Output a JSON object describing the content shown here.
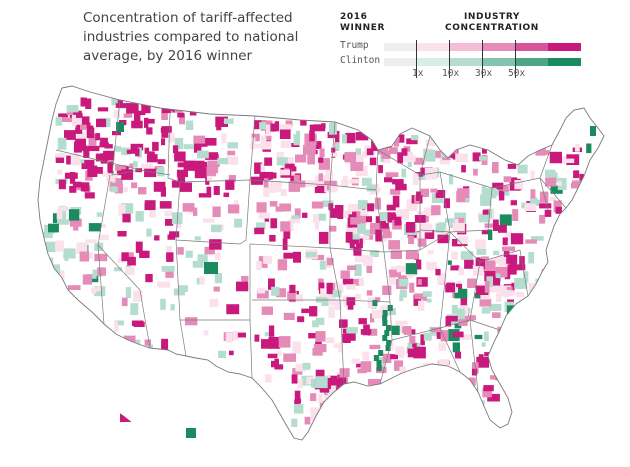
{
  "title": "Concentration of tariff-affected industries compared to national average, by 2016 winner",
  "legend": {
    "winner_heading": "2016 WINNER",
    "industry_heading": "INDUSTRY CONCENTRATION",
    "rows": [
      {
        "label": "Trump",
        "colors": [
          "#eeeeee",
          "#fbe1ec",
          "#f5bcd5",
          "#e58bb7",
          "#d9559a",
          "#c9197d"
        ]
      },
      {
        "label": "Clinton",
        "colors": [
          "#eeeeee",
          "#d9ede7",
          "#b4ddd0",
          "#84c3ad",
          "#4ea686",
          "#1b8a5e"
        ]
      }
    ],
    "ticks": [
      "1x",
      "10x",
      "30x",
      "50x"
    ]
  },
  "map": {
    "trump_color": "#c9197d",
    "trump_mid_color": "#e58bb7",
    "trump_light_color": "#fbe1ec",
    "clinton_color": "#1b8a5e",
    "clinton_light_color": "#b4ddd0",
    "base_color": "#ffffff",
    "border_color": "#7a7a7a"
  }
}
